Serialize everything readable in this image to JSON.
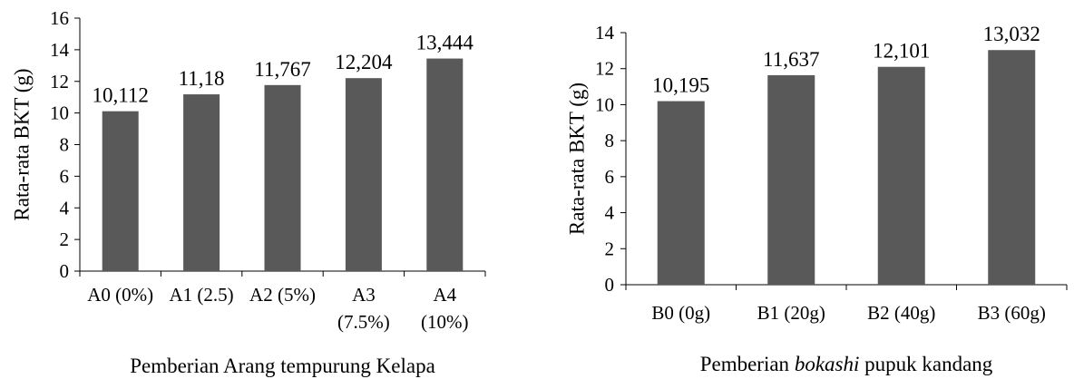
{
  "chart_data": [
    {
      "type": "bar",
      "categories": [
        [
          "A0 (0%)"
        ],
        [
          "A1 (2.5)"
        ],
        [
          "A2 (5%)"
        ],
        [
          "A3",
          "(7.5%)"
        ],
        [
          "A4",
          "(10%)"
        ]
      ],
      "values": [
        10.112,
        11.18,
        11.767,
        12.204,
        13.444
      ],
      "data_labels": [
        "10,112",
        "11,18",
        "11,767",
        "12,204",
        "13,444"
      ],
      "ylabel": "Rata-rata BKT (g)",
      "xlabel_parts": [
        {
          "text": "Pemberian Arang tempurung Kelapa",
          "italic": false
        }
      ],
      "ylim": [
        0,
        16
      ],
      "yticks": [
        0,
        2,
        4,
        6,
        8,
        10,
        12,
        14,
        16
      ],
      "bar_color": "#595959",
      "grid": false
    },
    {
      "type": "bar",
      "categories": [
        [
          "B0 (0g)"
        ],
        [
          "B1 (20g)"
        ],
        [
          "B2 (40g)"
        ],
        [
          "B3 (60g)"
        ]
      ],
      "values": [
        10.195,
        11.637,
        12.101,
        13.032
      ],
      "data_labels": [
        "10,195",
        "11,637",
        "12,101",
        "13,032"
      ],
      "ylabel": "Rata-rata BKT (g)",
      "xlabel_parts": [
        {
          "text": "Pemberian ",
          "italic": false
        },
        {
          "text": "bokashi",
          "italic": true
        },
        {
          "text": " pupuk kandang",
          "italic": false
        }
      ],
      "ylim": [
        0,
        14
      ],
      "yticks": [
        0,
        2,
        4,
        6,
        8,
        10,
        12,
        14
      ],
      "bar_color": "#595959",
      "grid": false
    }
  ]
}
